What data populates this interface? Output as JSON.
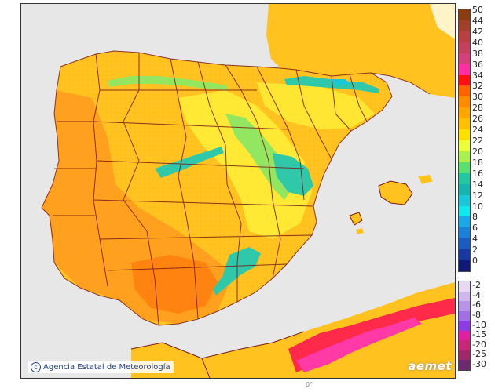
{
  "colors": {
    "sea": "#e7e7e7",
    "land_warm": "#ff9a1e",
    "land_base": "#ffc21f",
    "land_cool": "#fff23a",
    "mountain_green": "#93e65f",
    "mountain_teal": "#2fc8a8",
    "africa_red": "#ff2a4a",
    "africa_magenta": "#ff3aa6",
    "border": "#7a1a1a"
  },
  "footer": {
    "credit_icon": "copyright-icon",
    "credit_text": "Agencia Estatal de Meteorología",
    "brand_text": "aemet",
    "bottom_mark": "0°"
  },
  "legend": {
    "upper": [
      {
        "label": "50",
        "color": "#8b3d12"
      },
      {
        "label": "44",
        "color": "#a3402a"
      },
      {
        "label": "42",
        "color": "#b84040"
      },
      {
        "label": "40",
        "color": "#c4405c"
      },
      {
        "label": "38",
        "color": "#d4407c"
      },
      {
        "label": "36",
        "color": "#ff2fa3"
      },
      {
        "label": "34",
        "color": "#ff1010"
      },
      {
        "label": "32",
        "color": "#ff6400"
      },
      {
        "label": "30",
        "color": "#ff8c00"
      },
      {
        "label": "28",
        "color": "#ffa500"
      },
      {
        "label": "26",
        "color": "#ffc000"
      },
      {
        "label": "24",
        "color": "#ffe000"
      },
      {
        "label": "22",
        "color": "#e8ff3a"
      },
      {
        "label": "20",
        "color": "#aaf050"
      },
      {
        "label": "18",
        "color": "#5ae070"
      },
      {
        "label": "16",
        "color": "#23c8a0"
      },
      {
        "label": "14",
        "color": "#18b4b0"
      },
      {
        "label": "12",
        "color": "#18c8d8"
      },
      {
        "label": "10",
        "color": "#10e8f0"
      },
      {
        "label": "8",
        "color": "#1aa8e8"
      },
      {
        "label": "6",
        "color": "#1c80d8"
      },
      {
        "label": "4",
        "color": "#1a5cc0"
      },
      {
        "label": "2",
        "color": "#1838a0"
      },
      {
        "label": "0",
        "color": "#101878"
      }
    ],
    "lower": [
      {
        "label": "-2",
        "color": "#e8d8f0"
      },
      {
        "label": "-4",
        "color": "#d0b8ec"
      },
      {
        "label": "-6",
        "color": "#b894e8"
      },
      {
        "label": "-8",
        "color": "#a070e4"
      },
      {
        "label": "-10",
        "color": "#8c3ce0"
      },
      {
        "label": "-15",
        "color": "#e020a0"
      },
      {
        "label": "-20",
        "color": "#c82878"
      },
      {
        "label": "-25",
        "color": "#a02868"
      },
      {
        "label": "-30",
        "color": "#6e2a70"
      }
    ]
  }
}
